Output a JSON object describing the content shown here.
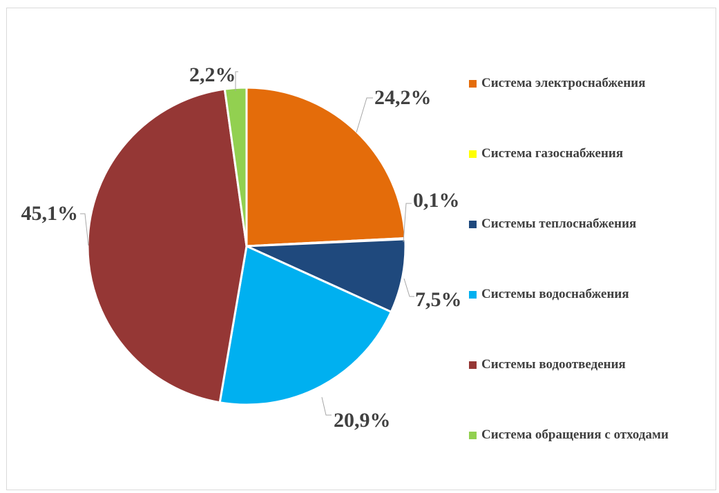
{
  "chart_data": {
    "type": "pie",
    "title": "",
    "categories": [
      "Система электроснабжения",
      "Система газоснабжения",
      "Системы теплоснабжения",
      "Системы водоснабжения",
      "Системы водоотведения",
      "Система обращения с отходами"
    ],
    "values": [
      24.2,
      0.1,
      7.5,
      20.9,
      45.1,
      2.2
    ],
    "data_labels": [
      "24,2%",
      "0,1%",
      "7,5%",
      "20,9%",
      "45,1%",
      "2,2%"
    ],
    "colors": [
      "#e46c0a",
      "#ffff00",
      "#1f497d",
      "#00b0f0",
      "#953735",
      "#92d050"
    ],
    "legend_position": "right"
  }
}
